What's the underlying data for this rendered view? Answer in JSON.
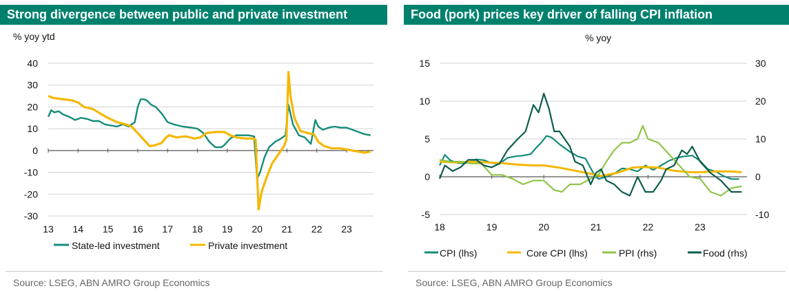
{
  "left": {
    "title": "Strong divergence between public and private investment",
    "unit": "% yoy ytd",
    "source": "Source: LSEG, ABN AMRO Group Economics"
  },
  "right": {
    "title": "Food (pork) prices key driver of falling CPI inflation",
    "unit": "% yoy",
    "source": "Source: LSEG, ABN AMRO Group Economics"
  },
  "colors": {
    "teal": "#138b78",
    "yellow": "#f4b700",
    "lightgreen": "#8ec549",
    "darkgreen": "#0b5c4d",
    "header": "#00816d"
  },
  "chart_data": [
    {
      "type": "line",
      "title": "Strong divergence between public and private investment",
      "ylabel": "% yoy ytd",
      "ylim": [
        -30,
        40
      ],
      "yticks": [
        -30,
        -20,
        -10,
        0,
        10,
        20,
        30,
        40
      ],
      "xlim": [
        2013,
        2023.9
      ],
      "xticks": [
        13,
        14,
        15,
        16,
        17,
        18,
        19,
        20,
        21,
        22,
        23
      ],
      "grid": true,
      "legend_position": "bottom",
      "series": [
        {
          "name": "State-led investment",
          "color": "#138b78",
          "x": [
            2013.0,
            2013.1,
            2013.2,
            2013.35,
            2013.5,
            2013.7,
            2013.9,
            2014.1,
            2014.3,
            2014.5,
            2014.7,
            2014.9,
            2015.1,
            2015.3,
            2015.5,
            2015.7,
            2015.9,
            2016.0,
            2016.1,
            2016.2,
            2016.3,
            2016.45,
            2016.6,
            2016.8,
            2017.0,
            2017.2,
            2017.5,
            2017.8,
            2018.0,
            2018.2,
            2018.4,
            2018.6,
            2018.8,
            2018.9,
            2019.1,
            2019.3,
            2019.5,
            2019.7,
            2019.9,
            2020.0,
            2020.1,
            2020.25,
            2020.4,
            2020.6,
            2020.8,
            2020.95,
            2021.05,
            2021.2,
            2021.4,
            2021.6,
            2021.8,
            2021.95,
            2022.05,
            2022.2,
            2022.4,
            2022.6,
            2022.8,
            2023.0,
            2023.2,
            2023.4,
            2023.6,
            2023.8
          ],
          "y": [
            15.5,
            18.5,
            17.5,
            18,
            16.5,
            15.5,
            14,
            15,
            14.5,
            13.5,
            13.5,
            12,
            11.5,
            11,
            12,
            11,
            13,
            20,
            23.5,
            23.5,
            23,
            21,
            20,
            17,
            13,
            12,
            11,
            10.5,
            10,
            8,
            4,
            1.5,
            1.5,
            2.5,
            5.5,
            7,
            7,
            7,
            6.5,
            -13,
            -10,
            -3,
            1.5,
            4,
            5.5,
            7,
            21,
            12,
            7,
            6,
            3,
            14,
            11,
            9.5,
            10.5,
            11,
            10.5,
            10.5,
            9.5,
            8.5,
            7.5,
            7
          ]
        },
        {
          "name": "Private investment",
          "color": "#f4b700",
          "x": [
            2013.0,
            2013.2,
            2013.5,
            2013.8,
            2014.0,
            2014.2,
            2014.5,
            2014.8,
            2015.0,
            2015.3,
            2015.6,
            2015.8,
            2016.0,
            2016.2,
            2016.4,
            2016.6,
            2016.8,
            2016.95,
            2017.05,
            2017.3,
            2017.6,
            2017.9,
            2018.1,
            2018.3,
            2018.6,
            2018.9,
            2019.1,
            2019.3,
            2019.6,
            2019.85,
            2019.95,
            2020.05,
            2020.15,
            2020.3,
            2020.5,
            2020.7,
            2020.9,
            2020.98,
            2021.05,
            2021.12,
            2021.25,
            2021.45,
            2021.7,
            2021.9,
            2022.05,
            2022.25,
            2022.5,
            2022.8,
            2023.0,
            2023.2,
            2023.4,
            2023.6,
            2023.8
          ],
          "y": [
            25,
            24,
            23.5,
            23,
            22,
            20,
            19,
            16.5,
            15,
            13,
            12,
            11,
            8,
            5,
            2,
            2.5,
            3.5,
            6,
            7,
            6,
            6.5,
            5.5,
            6,
            8,
            8.5,
            8.5,
            7,
            6,
            5.5,
            5.5,
            5,
            -27,
            -19,
            -13,
            -6,
            -2,
            2,
            5,
            36,
            25,
            15,
            9,
            8,
            7.5,
            4,
            2,
            1,
            1,
            0.5,
            0,
            -0.5,
            -1,
            -0.5
          ]
        }
      ]
    },
    {
      "type": "line",
      "title": "Food (pork) prices key driver of falling CPI inflation",
      "ylabel": "% yoy",
      "ylim_left": [
        -5,
        15
      ],
      "yticks_left": [
        -5,
        0,
        5,
        10,
        15
      ],
      "ylim_right": [
        -10,
        30
      ],
      "yticks_right": [
        -10,
        0,
        10,
        20,
        30
      ],
      "xlim": [
        2018,
        2023.9
      ],
      "xticks": [
        18,
        19,
        20,
        21,
        22,
        23
      ],
      "grid": true,
      "legend_position": "bottom",
      "series": [
        {
          "name": "CPI (lhs)",
          "axis": "left",
          "color": "#138b78",
          "x": [
            2018.0,
            2018.1,
            2018.2,
            2018.35,
            2018.5,
            2018.7,
            2018.85,
            2019.0,
            2019.15,
            2019.3,
            2019.45,
            2019.6,
            2019.75,
            2019.85,
            2019.95,
            2020.05,
            2020.15,
            2020.3,
            2020.5,
            2020.65,
            2020.8,
            2020.95,
            2021.05,
            2021.2,
            2021.35,
            2021.5,
            2021.65,
            2021.8,
            2021.95,
            2022.1,
            2022.25,
            2022.4,
            2022.55,
            2022.7,
            2022.85,
            2023.0,
            2023.15,
            2023.3,
            2023.45,
            2023.6,
            2023.75
          ],
          "y": [
            1.5,
            2.9,
            2.2,
            1.8,
            1.8,
            2.3,
            2.2,
            1.8,
            1.7,
            2.5,
            2.7,
            2.8,
            3.0,
            3.8,
            4.5,
            5.4,
            5.2,
            4.3,
            3.3,
            2.7,
            2.4,
            0.5,
            -0.3,
            0.0,
            0.4,
            1.1,
            1.0,
            0.7,
            1.5,
            0.9,
            1.5,
            2.1,
            2.5,
            2.7,
            2.8,
            2.1,
            1.0,
            0.7,
            0.1,
            -0.3,
            -0.3
          ]
        },
        {
          "name": "Core CPI (lhs)",
          "axis": "left",
          "color": "#f4b700",
          "x": [
            2018.0,
            2018.3,
            2018.6,
            2018.9,
            2019.2,
            2019.5,
            2019.8,
            2020.0,
            2020.3,
            2020.6,
            2020.9,
            2021.1,
            2021.4,
            2021.7,
            2021.9,
            2022.2,
            2022.5,
            2022.8,
            2023.0,
            2023.3,
            2023.6,
            2023.8
          ],
          "y": [
            2.0,
            1.9,
            2.0,
            1.9,
            1.8,
            1.6,
            1.5,
            1.5,
            1.2,
            0.8,
            0.4,
            0.1,
            0.5,
            1.2,
            1.3,
            1.2,
            0.8,
            0.6,
            0.6,
            0.7,
            0.7,
            0.6
          ]
        },
        {
          "name": "PPI (rhs)",
          "axis": "right",
          "color": "#8ec549",
          "x": [
            2018.0,
            2018.2,
            2018.4,
            2018.6,
            2018.8,
            2019.0,
            2019.2,
            2019.4,
            2019.6,
            2019.8,
            2020.0,
            2020.2,
            2020.35,
            2020.5,
            2020.7,
            2020.9,
            2021.05,
            2021.2,
            2021.35,
            2021.5,
            2021.65,
            2021.8,
            2021.9,
            2022.0,
            2022.2,
            2022.4,
            2022.6,
            2022.8,
            2023.0,
            2023.2,
            2023.4,
            2023.6,
            2023.8
          ],
          "y": [
            4.5,
            4,
            4,
            3.5,
            3.5,
            0.5,
            0.5,
            -0.5,
            -2,
            -1,
            -1,
            -3.5,
            -4,
            -2,
            -2,
            -0.5,
            0.5,
            4,
            7,
            9,
            9,
            10,
            13.5,
            10,
            9,
            6,
            3,
            0,
            -0.5,
            -4,
            -5,
            -3,
            -2.5
          ]
        },
        {
          "name": "Food (rhs)",
          "axis": "right",
          "color": "#0b5c4d",
          "x": [
            2018.0,
            2018.1,
            2018.25,
            2018.4,
            2018.55,
            2018.7,
            2018.85,
            2019.0,
            2019.15,
            2019.3,
            2019.5,
            2019.65,
            2019.8,
            2019.9,
            2020.0,
            2020.1,
            2020.2,
            2020.3,
            2020.4,
            2020.5,
            2020.6,
            2020.75,
            2020.9,
            2021.0,
            2021.1,
            2021.2,
            2021.35,
            2021.5,
            2021.65,
            2021.8,
            2021.95,
            2022.1,
            2022.25,
            2022.35,
            2022.5,
            2022.65,
            2022.75,
            2022.85,
            2023.0,
            2023.2,
            2023.4,
            2023.6,
            2023.8
          ],
          "y": [
            -0.5,
            3,
            1.5,
            2.5,
            4.5,
            4.5,
            3,
            2.5,
            3.5,
            7,
            10,
            12,
            19,
            17,
            22,
            18,
            12,
            12,
            10,
            8,
            4,
            3,
            -2,
            1,
            2,
            -1,
            -2,
            -4,
            -5,
            0,
            -4,
            -4,
            -1,
            2,
            3,
            7,
            6,
            8,
            4,
            1,
            -1,
            -4,
            -4
          ]
        }
      ]
    }
  ],
  "legends": {
    "left": [
      "State-led investment",
      "Private investment"
    ],
    "right": [
      "CPI (lhs)",
      "Core CPI (lhs)",
      "PPI (rhs)",
      "Food (rhs)"
    ]
  }
}
